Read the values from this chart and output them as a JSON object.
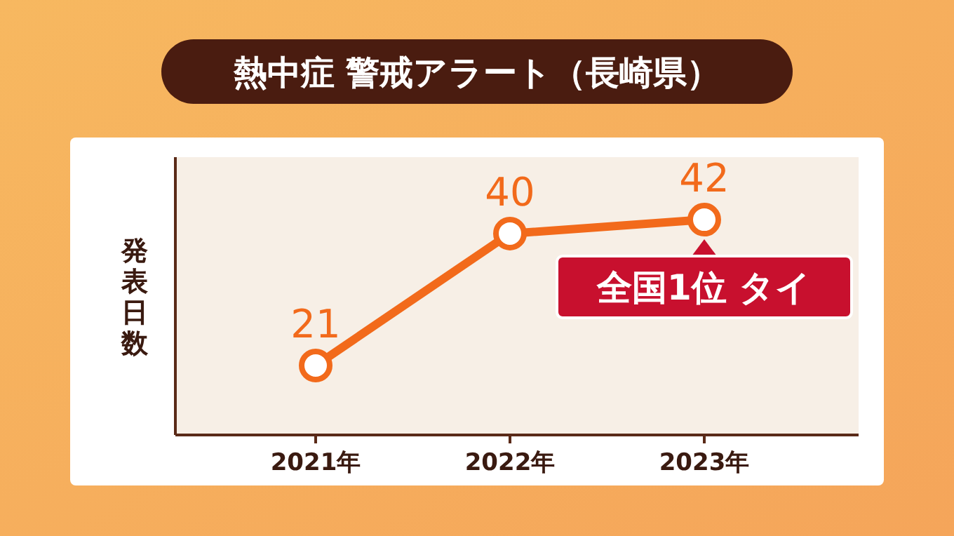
{
  "chart_data": {
    "type": "line",
    "title": "熱中症 警戒アラート（長崎県）",
    "ylabel": "発表日数",
    "categories": [
      "2021年",
      "2022年",
      "2023年"
    ],
    "values": [
      21,
      40,
      42
    ],
    "color": "#f26a1b",
    "ylim": [
      11,
      51
    ],
    "data_labels": true,
    "marker": "circle",
    "annotations": [
      {
        "text": "全国1位 タイ",
        "x": "2023年",
        "y": 42
      }
    ]
  }
}
